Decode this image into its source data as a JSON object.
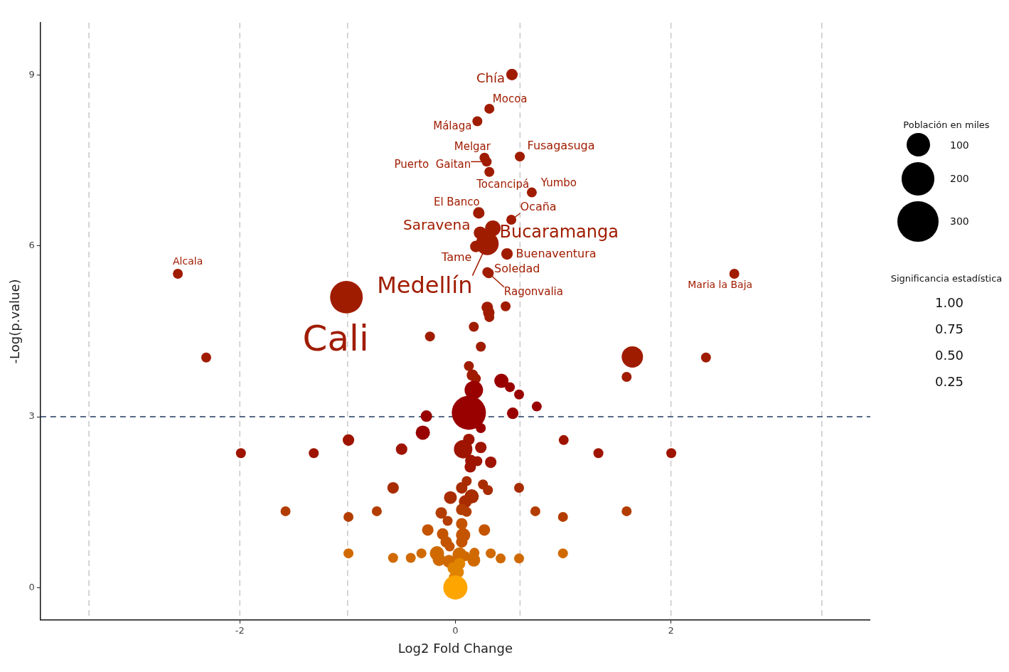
{
  "chart_data": {
    "type": "bubble",
    "xlabel": "Log2 Fold Change",
    "ylabel": "-Log(p.value)",
    "legend_title": "Población en miles",
    "size_legend": [
      100,
      200,
      300
    ],
    "xlim": [
      -3.85,
      3.85
    ],
    "xticks": [
      -2,
      0,
      2
    ],
    "ylim": [
      -0.57,
      9.92
    ],
    "yticks": [
      0,
      3,
      6,
      9
    ],
    "grid": false,
    "x": [
      0.525,
      0.315,
      0.204,
      0.27,
      0.598,
      0.29,
      0.315,
      0.709,
      0.217,
      0.519,
      0.348,
      0.23,
      0.296,
      0.19,
      0.479,
      0.296,
      0.31,
      -2.575,
      2.588,
      -1.011,
      0.296,
      0.31,
      0.315,
      0.466,
      -0.236,
      0.171,
      0.236,
      -2.312,
      2.325,
      1.642,
      1.589,
      0.125,
      0.158,
      0.19,
      0.171,
      0.427,
      0.506,
      0.591,
      0.755,
      0.125,
      0.532,
      -0.269,
      -0.302,
      0.236,
      -0.499,
      0.125,
      0.072,
      0.236,
      0.144,
      0.204,
      0.138,
      0.328,
      -0.992,
      -1.99,
      -1.314,
      1.005,
      1.327,
      2.003,
      -0.578,
      0.105,
      0.256,
      0.302,
      0.059,
      0.151,
      -0.046,
      0.092,
      0.591,
      0.059,
      0.105,
      -0.131,
      -0.072,
      0.742,
      0.998,
      -1.576,
      -0.992,
      -0.729,
      1.589,
      -0.256,
      -0.118,
      0.269,
      0.059,
      0.072,
      0.059,
      -0.085,
      -0.053,
      -0.578,
      -0.414,
      -0.315,
      -0.171,
      -0.151,
      -0.059,
      0.039,
      0.092,
      0.177,
      0.171,
      0.328,
      0.42,
      0.591,
      0.998,
      -0.992,
      0.039,
      -0.02,
      0.026,
      -0.007,
      0
    ],
    "values": [
      9.01,
      8.41,
      8.19,
      7.55,
      7.57,
      7.48,
      7.3,
      6.94,
      6.58,
      6.46,
      6.31,
      6.23,
      6.04,
      5.99,
      5.86,
      5.54,
      5.52,
      5.51,
      5.51,
      5.1,
      4.92,
      4.83,
      4.75,
      4.94,
      4.41,
      4.58,
      4.23,
      4.04,
      4.04,
      4.05,
      3.7,
      3.89,
      3.73,
      3.67,
      3.47,
      3.63,
      3.52,
      3.39,
      3.18,
      3.07,
      3.06,
      3.01,
      2.72,
      2.8,
      2.43,
      2.6,
      2.43,
      2.46,
      2.23,
      2.22,
      2.12,
      2.2,
      2.59,
      2.36,
      2.36,
      2.59,
      2.36,
      2.36,
      1.75,
      1.87,
      1.81,
      1.71,
      1.75,
      1.6,
      1.58,
      1.51,
      1.75,
      1.37,
      1.33,
      1.31,
      1.17,
      1.34,
      1.24,
      1.34,
      1.24,
      1.34,
      1.34,
      1.01,
      0.94,
      1.01,
      1.12,
      0.92,
      0.8,
      0.8,
      0.72,
      0.52,
      0.52,
      0.6,
      0.6,
      0.49,
      0.46,
      0.58,
      0.55,
      0.61,
      0.48,
      0.6,
      0.51,
      0.51,
      0.6,
      0.6,
      0.42,
      0.34,
      0.27,
      0.18,
      0
    ],
    "sizes": [
      24,
      18,
      18,
      18,
      18,
      18,
      18,
      18,
      24,
      18,
      44,
      30,
      94,
      24,
      24,
      18,
      18,
      18,
      18,
      194,
      24,
      24,
      18,
      18,
      18,
      18,
      18,
      18,
      18,
      83,
      18,
      18,
      24,
      18,
      62,
      37,
      18,
      18,
      18,
      212,
      24,
      24,
      37,
      18,
      24,
      24,
      62,
      24,
      24,
      18,
      24,
      24,
      24,
      18,
      18,
      18,
      18,
      18,
      24,
      18,
      18,
      18,
      24,
      37,
      30,
      30,
      18,
      24,
      18,
      24,
      18,
      18,
      18,
      18,
      18,
      18,
      18,
      24,
      24,
      24,
      24,
      37,
      24,
      24,
      18,
      18,
      18,
      18,
      37,
      30,
      30,
      37,
      18,
      18,
      30,
      18,
      18,
      18,
      18,
      18,
      24,
      24,
      24,
      24,
      106
    ],
    "colors": [
      "#a01c00",
      "#a01c00",
      "#a01c00",
      "#a01c00",
      "#a01c00",
      "#a01c00",
      "#a01c00",
      "#a01c00",
      "#a01c00",
      "#a01c00",
      "#a01c00",
      "#a01c00",
      "#a01c00",
      "#a01c00",
      "#a01c00",
      "#a01c00",
      "#a01c00",
      "#a01c00",
      "#a01c00",
      "#a01c00",
      "#a01c00",
      "#a01c00",
      "#a01c00",
      "#a01c00",
      "#a01c00",
      "#a01c00",
      "#a01c00",
      "#a01c00",
      "#a01c00",
      "#a01c00",
      "#a01c00",
      "#a01c00",
      "#a01c00",
      "#a01c00",
      "#990000",
      "#990000",
      "#990000",
      "#990000",
      "#990000",
      "#990000",
      "#990000",
      "#990000",
      "#990000",
      "#990000",
      "#9e1400",
      "#9e1400",
      "#9e1400",
      "#9e1400",
      "#9e1400",
      "#9e1400",
      "#9e1400",
      "#9e1400",
      "#9e1400",
      "#9e1400",
      "#9e1400",
      "#9e1400",
      "#9e1400",
      "#9e1400",
      "#a82c00",
      "#a82c00",
      "#a82c00",
      "#a82c00",
      "#a82c00",
      "#a82c00",
      "#a82c00",
      "#a82c00",
      "#a82c00",
      "#b33d00",
      "#b33d00",
      "#b33d00",
      "#b33d00",
      "#b33d00",
      "#b33d00",
      "#b33d00",
      "#b33d00",
      "#b33d00",
      "#b33d00",
      "#c45400",
      "#c45400",
      "#c45400",
      "#c45400",
      "#c45400",
      "#c45400",
      "#c45400",
      "#c45400",
      "#d06a00",
      "#d06a00",
      "#d06a00",
      "#d06a00",
      "#d06a00",
      "#d06a00",
      "#d06a00",
      "#d06a00",
      "#d06a00",
      "#d06a00",
      "#d06a00",
      "#d06a00",
      "#d06a00",
      "#d06a00",
      "#d06a00",
      "#e08400",
      "#e08400",
      "#e08400",
      "#e08400",
      "#ffa500"
    ],
    "ref_lines": [
      {
        "axis": "x",
        "value": -3.4,
        "color": "#c8c8c8",
        "line_style": "dashed"
      },
      {
        "axis": "x",
        "value": -2,
        "color": "#c8c8c8",
        "line_style": "dashed"
      },
      {
        "axis": "x",
        "value": -1,
        "color": "#c8c8c8",
        "line_style": "dashed"
      },
      {
        "axis": "x",
        "value": 0.6,
        "color": "#c8c8c8",
        "line_style": "dashed"
      },
      {
        "axis": "x",
        "value": 2,
        "color": "#c8c8c8",
        "line_style": "dashed"
      },
      {
        "axis": "x",
        "value": 3.4,
        "color": "#c8c8c8",
        "line_style": "dashed"
      },
      {
        "axis": "y",
        "value": 3,
        "color": "#1f3a5f",
        "line_style": "dashed"
      }
    ],
    "annotations": [
      {
        "text": "Chía",
        "x": 0.525,
        "y": 9.01
      },
      {
        "text": "Mocoa",
        "x": 0.315,
        "y": 8.41
      },
      {
        "text": "Málaga",
        "x": 0.204,
        "y": 8.19
      },
      {
        "text": "Melgar",
        "x": 0.27,
        "y": 7.55
      },
      {
        "text": "Fusagasuga",
        "x": 0.598,
        "y": 7.57
      },
      {
        "text": "Puerto  Gaitan",
        "x": 0.29,
        "y": 7.48
      },
      {
        "text": "Tocancipá",
        "x": 0.315,
        "y": 7.3
      },
      {
        "text": "Yumbo",
        "x": 0.709,
        "y": 6.94
      },
      {
        "text": "El Banco",
        "x": 0.217,
        "y": 6.58
      },
      {
        "text": "Ocaña",
        "x": 0.519,
        "y": 6.46
      },
      {
        "text": "Bucaramanga",
        "x": 0.348,
        "y": 6.31
      },
      {
        "text": "Saravena",
        "x": 0.23,
        "y": 6.23
      },
      {
        "text": "Medellín",
        "x": 0.296,
        "y": 6.04
      },
      {
        "text": "Tame",
        "x": 0.19,
        "y": 5.99
      },
      {
        "text": "Buenaventura",
        "x": 0.479,
        "y": 5.86
      },
      {
        "text": "Soledad",
        "x": 0.296,
        "y": 5.54
      },
      {
        "text": "Ragonvalia",
        "x": 0.31,
        "y": 5.52
      },
      {
        "text": "Alcala",
        "x": -2.575,
        "y": 5.51
      },
      {
        "text": "Maria la Baja",
        "x": 2.588,
        "y": 5.51
      },
      {
        "text": "Cali",
        "x": -1.011,
        "y": 5.1
      },
      "Significancia estadística",
      "1.00",
      "0.75",
      "0.50",
      "0.25"
    ]
  }
}
